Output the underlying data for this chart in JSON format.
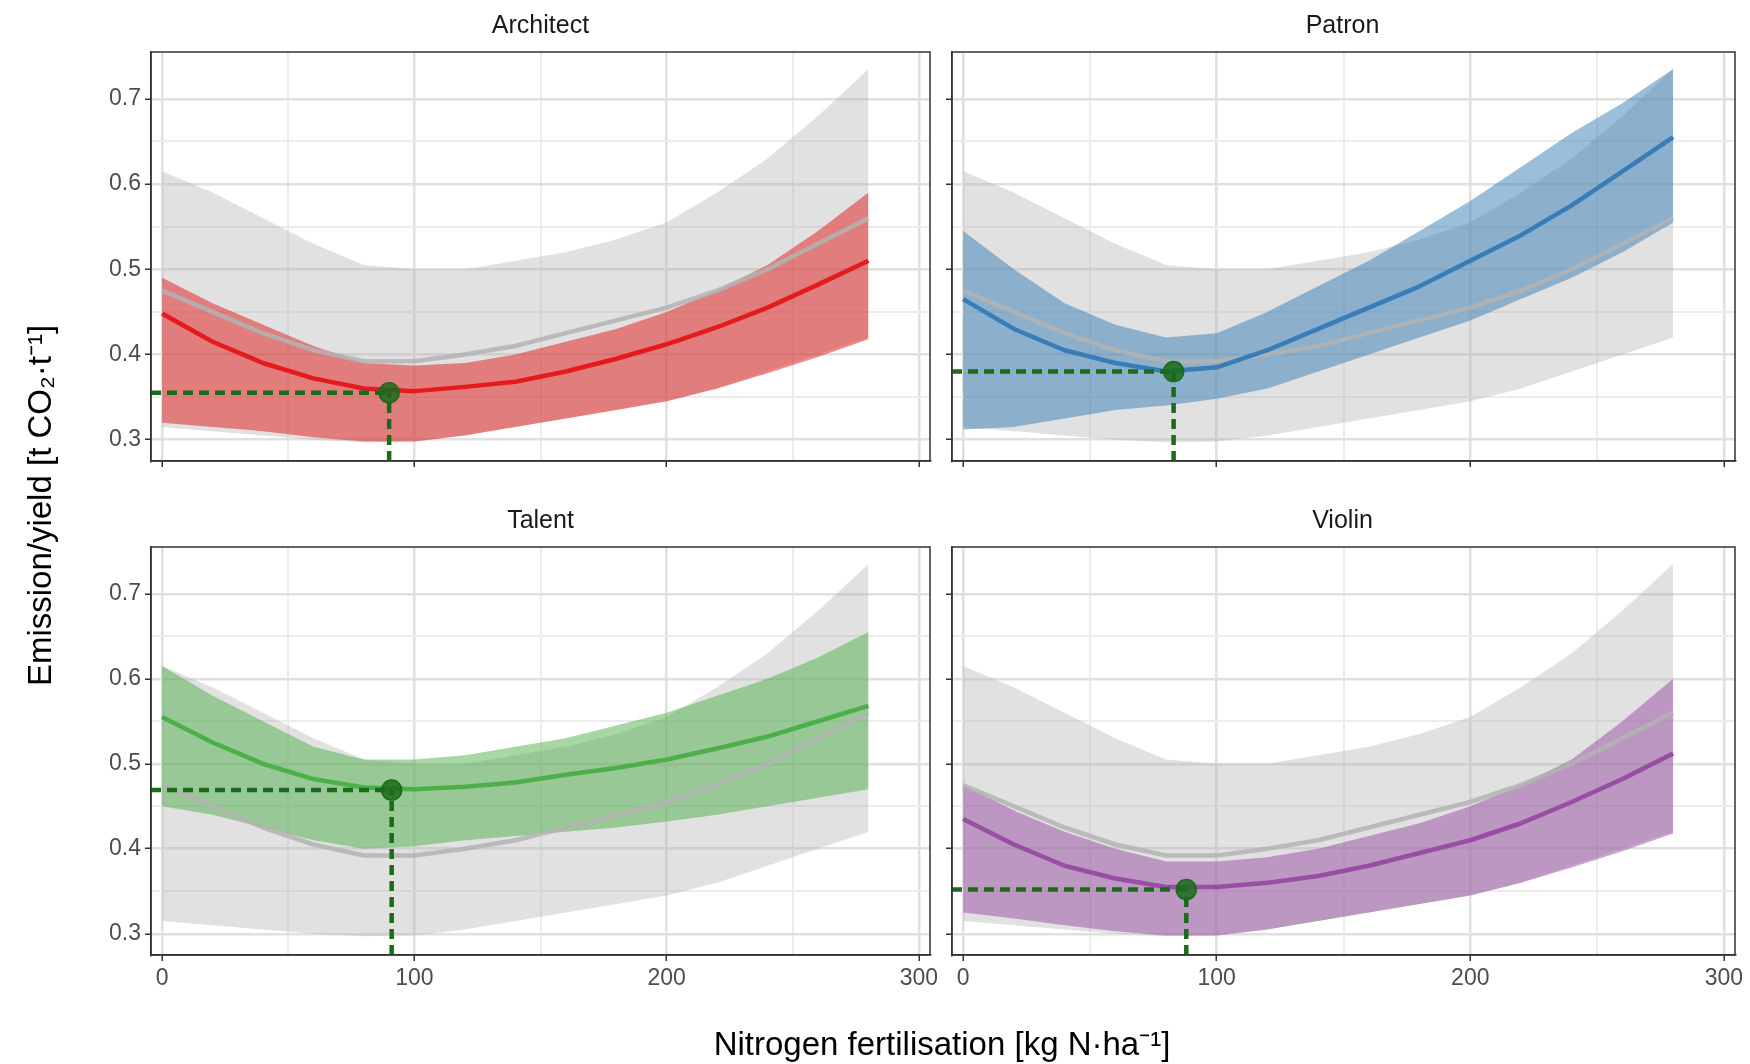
{
  "chart_data": [
    {
      "type": "line",
      "title": "Architect",
      "ylabel": "Emission/yield [t CO₂·t⁻¹]",
      "xlim": [
        -4.4,
        304.4
      ],
      "xticks": [
        0,
        {
          "value": 50,
          "label": null
        },
        100,
        {
          "value": 150,
          "label": null
        },
        200,
        {
          "value": 250,
          "label": null
        },
        300
      ],
      "ylim": [
        0.275,
        0.755
      ],
      "yticks": [
        0.3,
        {
          "value": 0.35,
          "label": null
        },
        0.4,
        {
          "value": 0.45,
          "label": null
        },
        0.5,
        {
          "value": 0.55,
          "label": null
        },
        0.6,
        {
          "value": 0.65,
          "label": null
        },
        0.7
      ],
      "grid": true,
      "tick_labels": "y",
      "legend": false,
      "series": [
        {
          "color": "#b3b3b3",
          "x": [
            0,
            20,
            40,
            60,
            80,
            100,
            120,
            140,
            160,
            180,
            200,
            220,
            240,
            260,
            280
          ],
          "values": [
            0.475,
            0.45,
            0.425,
            0.405,
            0.392,
            0.392,
            0.4,
            0.41,
            0.425,
            0.44,
            0.455,
            0.475,
            0.5,
            0.53,
            0.56
          ],
          "lower": [
            0.315,
            0.31,
            0.305,
            0.3,
            0.297,
            0.298,
            0.305,
            0.315,
            0.325,
            0.335,
            0.345,
            0.36,
            0.38,
            0.4,
            0.42
          ],
          "upper": [
            0.615,
            0.59,
            0.56,
            0.53,
            0.505,
            0.5,
            0.5,
            0.51,
            0.52,
            0.535,
            0.555,
            0.59,
            0.63,
            0.68,
            0.735
          ]
        },
        {
          "color": "#e41a1c",
          "x": [
            0,
            20,
            40,
            60,
            80,
            100,
            120,
            140,
            160,
            180,
            200,
            220,
            240,
            260,
            280
          ],
          "values": [
            0.448,
            0.415,
            0.39,
            0.372,
            0.36,
            0.357,
            0.362,
            0.368,
            0.38,
            0.395,
            0.412,
            0.432,
            0.455,
            0.482,
            0.51
          ],
          "lower": [
            0.32,
            0.315,
            0.31,
            0.303,
            0.298,
            0.298,
            0.305,
            0.315,
            0.325,
            0.335,
            0.345,
            0.36,
            0.378,
            0.397,
            0.418
          ],
          "upper": [
            0.49,
            0.46,
            0.435,
            0.41,
            0.39,
            0.387,
            0.39,
            0.4,
            0.415,
            0.43,
            0.45,
            0.475,
            0.505,
            0.545,
            0.59
          ]
        },
        {
          "color": "#1a6b1a",
          "line_style": "dashed",
          "x": [
            -4.4,
            90
          ],
          "values": [
            0.355,
            0.355
          ]
        },
        {
          "color": "#1a6b1a",
          "line_style": "dashed",
          "x": [
            90,
            90
          ],
          "values": [
            0.275,
            0.355
          ]
        },
        {
          "type": "scatter",
          "color": "#1a6b1a",
          "marker": "circle",
          "x": [
            90
          ],
          "values": [
            0.355
          ]
        }
      ]
    },
    {
      "type": "line",
      "title": "Patron",
      "xlim": [
        -4.4,
        304.4
      ],
      "xticks": [
        0,
        {
          "value": 50,
          "label": null
        },
        100,
        {
          "value": 150,
          "label": null
        },
        200,
        {
          "value": 250,
          "label": null
        },
        300
      ],
      "ylim": [
        0.275,
        0.755
      ],
      "yticks": [
        0.3,
        {
          "value": 0.35,
          "label": null
        },
        0.4,
        {
          "value": 0.45,
          "label": null
        },
        0.5,
        {
          "value": 0.55,
          "label": null
        },
        0.6,
        {
          "value": 0.65,
          "label": null
        },
        0.7
      ],
      "grid": true,
      "tick_labels": false,
      "legend": false,
      "series": [
        {
          "color": "#b3b3b3",
          "x": [
            0,
            20,
            40,
            60,
            80,
            100,
            120,
            140,
            160,
            180,
            200,
            220,
            240,
            260,
            280
          ],
          "values": [
            0.475,
            0.45,
            0.425,
            0.405,
            0.392,
            0.392,
            0.4,
            0.41,
            0.425,
            0.44,
            0.455,
            0.475,
            0.5,
            0.53,
            0.56
          ],
          "lower": [
            0.315,
            0.31,
            0.305,
            0.3,
            0.297,
            0.298,
            0.305,
            0.315,
            0.325,
            0.335,
            0.345,
            0.36,
            0.38,
            0.4,
            0.42
          ],
          "upper": [
            0.615,
            0.59,
            0.56,
            0.53,
            0.505,
            0.5,
            0.5,
            0.51,
            0.52,
            0.535,
            0.555,
            0.59,
            0.63,
            0.68,
            0.735
          ]
        },
        {
          "color": "#377eb8",
          "x": [
            0,
            20,
            40,
            60,
            80,
            100,
            120,
            140,
            160,
            180,
            200,
            220,
            240,
            260,
            280
          ],
          "values": [
            0.465,
            0.43,
            0.405,
            0.39,
            0.38,
            0.385,
            0.405,
            0.43,
            0.455,
            0.48,
            0.51,
            0.54,
            0.575,
            0.615,
            0.655
          ],
          "lower": [
            0.312,
            0.315,
            0.325,
            0.335,
            0.34,
            0.348,
            0.36,
            0.38,
            0.4,
            0.42,
            0.44,
            0.465,
            0.49,
            0.52,
            0.555
          ],
          "upper": [
            0.545,
            0.5,
            0.46,
            0.435,
            0.42,
            0.425,
            0.45,
            0.48,
            0.51,
            0.545,
            0.58,
            0.62,
            0.66,
            0.695,
            0.735
          ]
        },
        {
          "color": "#1a6b1a",
          "line_style": "dashed",
          "x": [
            -4.4,
            83
          ],
          "values": [
            0.38,
            0.38
          ]
        },
        {
          "color": "#1a6b1a",
          "line_style": "dashed",
          "x": [
            83,
            83
          ],
          "values": [
            0.275,
            0.38
          ]
        },
        {
          "type": "scatter",
          "color": "#1a6b1a",
          "marker": "circle",
          "x": [
            83
          ],
          "values": [
            0.38
          ]
        }
      ]
    },
    {
      "type": "line",
      "title": "Talent",
      "xlabel": "Nitrogen fertilisation [kg N·ha⁻¹]",
      "xlim": [
        -4.4,
        304.4
      ],
      "xticks": [
        0,
        {
          "value": 50,
          "label": null
        },
        100,
        {
          "value": 150,
          "label": null
        },
        200,
        {
          "value": 250,
          "label": null
        },
        300
      ],
      "ylim": [
        0.275,
        0.755
      ],
      "yticks": [
        0.3,
        {
          "value": 0.35,
          "label": null
        },
        0.4,
        {
          "value": 0.45,
          "label": null
        },
        0.5,
        {
          "value": 0.55,
          "label": null
        },
        0.6,
        {
          "value": 0.65,
          "label": null
        },
        0.7
      ],
      "grid": true,
      "legend": false,
      "series": [
        {
          "color": "#b3b3b3",
          "x": [
            0,
            20,
            40,
            60,
            80,
            100,
            120,
            140,
            160,
            180,
            200,
            220,
            240,
            260,
            280
          ],
          "values": [
            0.475,
            0.45,
            0.425,
            0.405,
            0.392,
            0.392,
            0.4,
            0.41,
            0.425,
            0.44,
            0.455,
            0.475,
            0.5,
            0.53,
            0.56
          ],
          "lower": [
            0.315,
            0.31,
            0.305,
            0.3,
            0.297,
            0.298,
            0.305,
            0.315,
            0.325,
            0.335,
            0.345,
            0.36,
            0.38,
            0.4,
            0.42
          ],
          "upper": [
            0.615,
            0.59,
            0.56,
            0.53,
            0.505,
            0.5,
            0.5,
            0.51,
            0.52,
            0.535,
            0.555,
            0.59,
            0.63,
            0.68,
            0.735
          ]
        },
        {
          "color": "#4daf4a",
          "x": [
            0,
            20,
            40,
            60,
            80,
            100,
            120,
            140,
            160,
            180,
            200,
            220,
            240,
            260,
            280
          ],
          "values": [
            0.555,
            0.525,
            0.5,
            0.482,
            0.472,
            0.47,
            0.473,
            0.478,
            0.487,
            0.495,
            0.505,
            0.518,
            0.532,
            0.55,
            0.568
          ],
          "lower": [
            0.45,
            0.44,
            0.425,
            0.41,
            0.4,
            0.403,
            0.41,
            0.415,
            0.42,
            0.425,
            0.432,
            0.44,
            0.45,
            0.46,
            0.47
          ],
          "upper": [
            0.615,
            0.58,
            0.55,
            0.52,
            0.505,
            0.505,
            0.51,
            0.52,
            0.53,
            0.545,
            0.56,
            0.58,
            0.6,
            0.625,
            0.655
          ]
        },
        {
          "color": "#1a6b1a",
          "line_style": "dashed",
          "x": [
            -4.4,
            91
          ],
          "values": [
            0.469,
            0.469
          ]
        },
        {
          "color": "#1a6b1a",
          "line_style": "dashed",
          "x": [
            91,
            91
          ],
          "values": [
            0.275,
            0.469
          ]
        },
        {
          "type": "scatter",
          "color": "#1a6b1a",
          "marker": "circle",
          "x": [
            91
          ],
          "values": [
            0.469
          ]
        }
      ]
    },
    {
      "type": "line",
      "title": "Violin",
      "xlim": [
        -4.4,
        304.4
      ],
      "xticks": [
        0,
        {
          "value": 50,
          "label": null
        },
        100,
        {
          "value": 150,
          "label": null
        },
        200,
        {
          "value": 250,
          "label": null
        },
        300
      ],
      "ylim": [
        0.275,
        0.755
      ],
      "yticks": [
        0.3,
        {
          "value": 0.35,
          "label": null
        },
        0.4,
        {
          "value": 0.45,
          "label": null
        },
        0.5,
        {
          "value": 0.55,
          "label": null
        },
        0.6,
        {
          "value": 0.65,
          "label": null
        },
        0.7
      ],
      "grid": true,
      "tick_labels": "x",
      "legend": false,
      "series": [
        {
          "color": "#b3b3b3",
          "x": [
            0,
            20,
            40,
            60,
            80,
            100,
            120,
            140,
            160,
            180,
            200,
            220,
            240,
            260,
            280
          ],
          "values": [
            0.475,
            0.45,
            0.425,
            0.405,
            0.392,
            0.392,
            0.4,
            0.41,
            0.425,
            0.44,
            0.455,
            0.475,
            0.5,
            0.53,
            0.56
          ],
          "lower": [
            0.315,
            0.31,
            0.305,
            0.3,
            0.297,
            0.298,
            0.305,
            0.315,
            0.325,
            0.335,
            0.345,
            0.36,
            0.38,
            0.4,
            0.42
          ],
          "upper": [
            0.615,
            0.59,
            0.56,
            0.53,
            0.505,
            0.5,
            0.5,
            0.51,
            0.52,
            0.535,
            0.555,
            0.59,
            0.63,
            0.68,
            0.735
          ]
        },
        {
          "color": "#984ea3",
          "x": [
            0,
            20,
            40,
            60,
            80,
            100,
            120,
            140,
            160,
            180,
            200,
            220,
            240,
            260,
            280
          ],
          "values": [
            0.435,
            0.405,
            0.38,
            0.365,
            0.355,
            0.355,
            0.36,
            0.368,
            0.38,
            0.395,
            0.41,
            0.43,
            0.455,
            0.482,
            0.512
          ],
          "lower": [
            0.325,
            0.318,
            0.31,
            0.303,
            0.298,
            0.298,
            0.305,
            0.315,
            0.325,
            0.335,
            0.345,
            0.36,
            0.378,
            0.397,
            0.418
          ],
          "upper": [
            0.475,
            0.445,
            0.42,
            0.4,
            0.385,
            0.385,
            0.39,
            0.4,
            0.415,
            0.43,
            0.45,
            0.475,
            0.505,
            0.55,
            0.6
          ]
        },
        {
          "color": "#1a6b1a",
          "line_style": "dashed",
          "x": [
            -4.4,
            88
          ],
          "values": [
            0.352,
            0.352
          ]
        },
        {
          "color": "#1a6b1a",
          "line_style": "dashed",
          "x": [
            88,
            88
          ],
          "values": [
            0.275,
            0.352
          ]
        },
        {
          "type": "scatter",
          "color": "#1a6b1a",
          "marker": "circle",
          "x": [
            88
          ],
          "values": [
            0.352
          ]
        }
      ]
    }
  ]
}
